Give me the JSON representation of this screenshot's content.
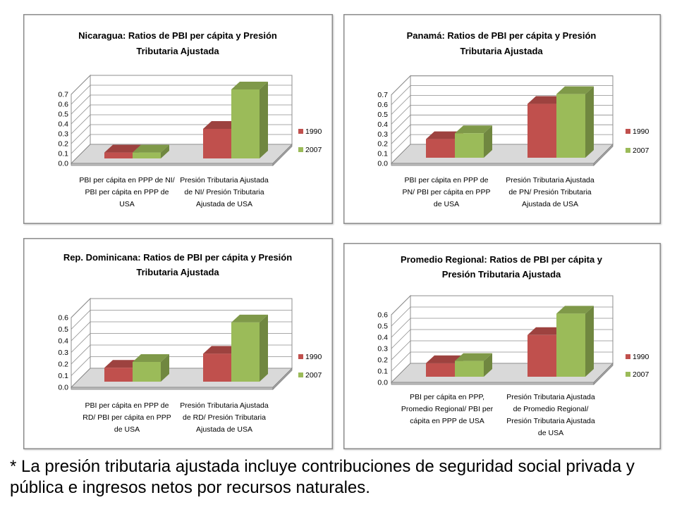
{
  "chart_data": [
    {
      "type": "bar",
      "three_d": true,
      "title": [
        "Nicaragua: Ratios de PBI per cápita y Presión",
        "Tributaria Ajustada"
      ],
      "categories": [
        [
          "PBI per cápita en PPP de NI/",
          "PBI per cápita en PPP de",
          "USA"
        ],
        [
          "Presión Tributaria Ajustada",
          "de NI/ Presión Tributaria",
          "Ajustada de USA"
        ]
      ],
      "series": [
        {
          "name": "1990",
          "values": [
            0.06,
            0.3
          ],
          "color": "#c0504d"
        },
        {
          "name": "2007",
          "values": [
            0.06,
            0.7
          ],
          "color": "#9bbb59"
        }
      ],
      "ylim": [
        0,
        0.7
      ],
      "yticks": [
        "0.0",
        "0.1",
        "0.2",
        "0.3",
        "0.4",
        "0.5",
        "0.6",
        "0.7"
      ],
      "grid": true,
      "legend": "right"
    },
    {
      "type": "bar",
      "three_d": true,
      "title": [
        "Panamá: Ratios de PBI per cápita y Presión",
        "Tributaria Ajustada"
      ],
      "categories": [
        [
          "PBI per cápita en PPP de",
          "PN/ PBI per cápita en PPP",
          "de USA"
        ],
        [
          "Presión Tributaria Ajustada",
          "de PN/ Presión Tributaria",
          "Ajustada de USA"
        ]
      ],
      "series": [
        {
          "name": "1990",
          "values": [
            0.19,
            0.55
          ],
          "color": "#c0504d"
        },
        {
          "name": "2007",
          "values": [
            0.25,
            0.65
          ],
          "color": "#9bbb59"
        }
      ],
      "ylim": [
        0,
        0.7
      ],
      "yticks": [
        "0.0",
        "0.1",
        "0.2",
        "0.3",
        "0.4",
        "0.5",
        "0.6",
        "0.7"
      ],
      "grid": true,
      "legend": "right"
    },
    {
      "type": "bar",
      "three_d": true,
      "title": [
        "Rep. Dominicana: Ratios de PBI per cápita y Presión",
        "Tributaria Ajustada"
      ],
      "categories": [
        [
          "PBI per cápita en PPP de",
          "RD/ PBI per cápita en PPP",
          "de USA"
        ],
        [
          "Presión Tributaria Ajustada",
          "de RD/ Presión Tributaria",
          "Ajustada de USA"
        ]
      ],
      "series": [
        {
          "name": "1990",
          "values": [
            0.12,
            0.24
          ],
          "color": "#c0504d"
        },
        {
          "name": "2007",
          "values": [
            0.17,
            0.51
          ],
          "color": "#9bbb59"
        }
      ],
      "ylim": [
        0,
        0.6
      ],
      "yticks": [
        "0.0",
        "0.1",
        "0.2",
        "0.3",
        "0.4",
        "0.5",
        "0.6"
      ],
      "grid": true,
      "legend": "right"
    },
    {
      "type": "bar",
      "three_d": true,
      "title": [
        "Promedio Regional: Ratios de PBI per cápita y",
        "Presión Tributaria Ajustada"
      ],
      "categories": [
        [
          "PBI per cápita en PPP,",
          "Promedio Regional/ PBI per",
          "cápita en PPP de USA"
        ],
        [
          "Presión Tributaria Ajustada",
          "de Promedio Regional/",
          "Presión Tributaria Ajustada",
          "de USA"
        ]
      ],
      "series": [
        {
          "name": "1990",
          "values": [
            0.12,
            0.37
          ],
          "color": "#c0504d"
        },
        {
          "name": "2007",
          "values": [
            0.14,
            0.56
          ],
          "color": "#9bbb59"
        }
      ],
      "ylim": [
        0,
        0.6
      ],
      "yticks": [
        "0.0",
        "0.1",
        "0.2",
        "0.3",
        "0.4",
        "0.5",
        "0.6"
      ],
      "grid": true,
      "legend": "right"
    }
  ],
  "footnote": [
    "* La presión tributaria ajustada incluye contribuciones de seguridad social privada y",
    "pública e ingresos netos por recursos naturales."
  ]
}
